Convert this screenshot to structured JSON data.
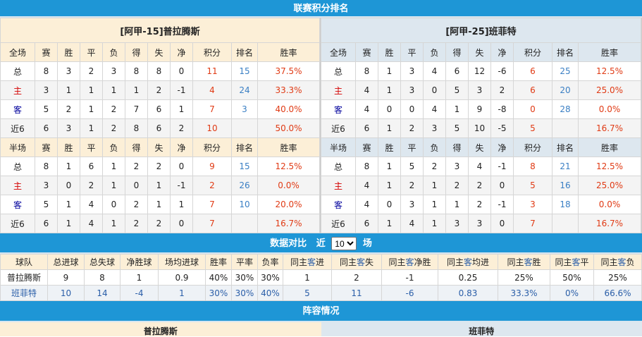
{
  "standings": {
    "title": "联赛积分排名",
    "columns_full": [
      "全场",
      "赛",
      "胜",
      "平",
      "负",
      "得",
      "失",
      "净",
      "积分",
      "排名",
      "胜率"
    ],
    "columns_half": [
      "半场",
      "赛",
      "胜",
      "平",
      "负",
      "得",
      "失",
      "净",
      "积分",
      "排名",
      "胜率"
    ],
    "home": {
      "team": "[阿甲-15]普拉腾斯",
      "full": [
        [
          "总",
          "8",
          "3",
          "2",
          "3",
          "8",
          "8",
          "0",
          "11",
          "15",
          "37.5%"
        ],
        [
          "主",
          "3",
          "1",
          "1",
          "1",
          "1",
          "2",
          "-1",
          "4",
          "24",
          "33.3%"
        ],
        [
          "客",
          "5",
          "2",
          "1",
          "2",
          "7",
          "6",
          "1",
          "7",
          "3",
          "40.0%"
        ],
        [
          "近6",
          "6",
          "3",
          "1",
          "2",
          "8",
          "6",
          "2",
          "10",
          "",
          "50.0%"
        ]
      ],
      "half": [
        [
          "总",
          "8",
          "1",
          "6",
          "1",
          "2",
          "2",
          "0",
          "9",
          "15",
          "12.5%"
        ],
        [
          "主",
          "3",
          "0",
          "2",
          "1",
          "0",
          "1",
          "-1",
          "2",
          "26",
          "0.0%"
        ],
        [
          "客",
          "5",
          "1",
          "4",
          "0",
          "2",
          "1",
          "1",
          "7",
          "10",
          "20.0%"
        ],
        [
          "近6",
          "6",
          "1",
          "4",
          "1",
          "2",
          "2",
          "0",
          "7",
          "",
          "16.7%"
        ]
      ]
    },
    "away": {
      "team": "[阿甲-25]班菲特",
      "full": [
        [
          "总",
          "8",
          "1",
          "3",
          "4",
          "6",
          "12",
          "-6",
          "6",
          "25",
          "12.5%"
        ],
        [
          "主",
          "4",
          "1",
          "3",
          "0",
          "5",
          "3",
          "2",
          "6",
          "20",
          "25.0%"
        ],
        [
          "客",
          "4",
          "0",
          "0",
          "4",
          "1",
          "9",
          "-8",
          "0",
          "28",
          "0.0%"
        ],
        [
          "近6",
          "6",
          "1",
          "2",
          "3",
          "5",
          "10",
          "-5",
          "5",
          "",
          "16.7%"
        ]
      ],
      "half": [
        [
          "总",
          "8",
          "1",
          "5",
          "2",
          "3",
          "4",
          "-1",
          "8",
          "21",
          "12.5%"
        ],
        [
          "主",
          "4",
          "1",
          "2",
          "1",
          "2",
          "2",
          "0",
          "5",
          "16",
          "25.0%"
        ],
        [
          "客",
          "4",
          "0",
          "3",
          "1",
          "1",
          "2",
          "-1",
          "3",
          "18",
          "0.0%"
        ],
        [
          "近6",
          "6",
          "1",
          "4",
          "1",
          "3",
          "3",
          "0",
          "7",
          "",
          "16.7%"
        ]
      ]
    }
  },
  "comparison": {
    "title": "数据对比",
    "recent_prefix": "近",
    "recent_value": "10",
    "recent_suffix": "场",
    "columns": [
      "球队",
      "总进球",
      "总失球",
      "净胜球",
      "场均进球",
      "胜率",
      "平率",
      "负率",
      "同主客进",
      "同主客失",
      "同主客净胜",
      "同主客均进",
      "同主客胜",
      "同主客平",
      "同主客负"
    ],
    "rows": [
      [
        "普拉腾斯",
        "9",
        "8",
        "1",
        "0.9",
        "40%",
        "30%",
        "30%",
        "1",
        "2",
        "-1",
        "0.25",
        "25%",
        "50%",
        "25%"
      ],
      [
        "班菲特",
        "10",
        "14",
        "-4",
        "1",
        "30%",
        "30%",
        "40%",
        "5",
        "11",
        "-6",
        "0.83",
        "33.3%",
        "0%",
        "66.6%"
      ]
    ]
  },
  "lineup": {
    "title": "阵容情况",
    "home": "普拉腾斯",
    "away": "班菲特"
  },
  "colors": {
    "header_bar": "#1e96d6",
    "points": "#e03a14",
    "rank": "#3a7fc4",
    "home_label": "#d40000",
    "away_label": "#00009c"
  }
}
